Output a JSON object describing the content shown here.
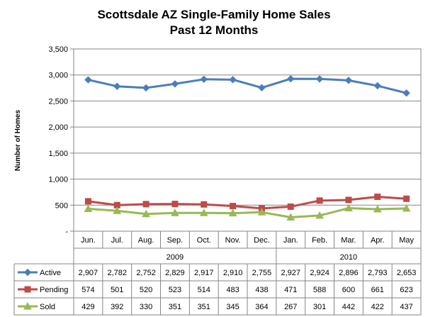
{
  "chart_data": {
    "type": "line",
    "title": "Scottsdale AZ Single-Family Home Sales",
    "subtitle": "Past 12 Months",
    "ylabel": "Number of Homes",
    "ylim": [
      0,
      3500
    ],
    "yticks": [
      0,
      500,
      1000,
      1500,
      2000,
      2500,
      3000,
      3500
    ],
    "ytick_labels": [
      "-",
      "500",
      "1,000",
      "1,500",
      "2,000",
      "2,500",
      "3,000",
      "3,500"
    ],
    "categories": [
      "Jun.",
      "Jul.",
      "Aug.",
      "Sep.",
      "Oct.",
      "Nov.",
      "Dec.",
      "Jan.",
      "Feb.",
      "Mar.",
      "Apr.",
      "May"
    ],
    "year_groups": [
      {
        "label": "2009",
        "start": 0,
        "end": 6
      },
      {
        "label": "2010",
        "start": 7,
        "end": 11
      }
    ],
    "grid": "horizontal",
    "legend": "data-table",
    "series": [
      {
        "name": "Active",
        "color": "#4a7ebb",
        "marker": "diamond",
        "values": [
          2907,
          2782,
          2752,
          2829,
          2917,
          2910,
          2755,
          2927,
          2924,
          2896,
          2793,
          2653
        ],
        "labels": [
          "2,907",
          "2,782",
          "2,752",
          "2,829",
          "2,917",
          "2,910",
          "2,755",
          "2,927",
          "2,924",
          "2,896",
          "2,793",
          "2,653"
        ]
      },
      {
        "name": "Pending",
        "color": "#be4b48",
        "marker": "square",
        "values": [
          574,
          501,
          520,
          523,
          514,
          483,
          438,
          471,
          588,
          600,
          661,
          623
        ],
        "labels": [
          "574",
          "501",
          "520",
          "523",
          "514",
          "483",
          "438",
          "471",
          "588",
          "600",
          "661",
          "623"
        ]
      },
      {
        "name": "Sold",
        "color": "#98b954",
        "marker": "triangle",
        "values": [
          429,
          392,
          330,
          351,
          351,
          345,
          364,
          267,
          301,
          442,
          422,
          437
        ],
        "labels": [
          "429",
          "392",
          "330",
          "351",
          "351",
          "345",
          "364",
          "267",
          "301",
          "442",
          "422",
          "437"
        ]
      }
    ]
  }
}
